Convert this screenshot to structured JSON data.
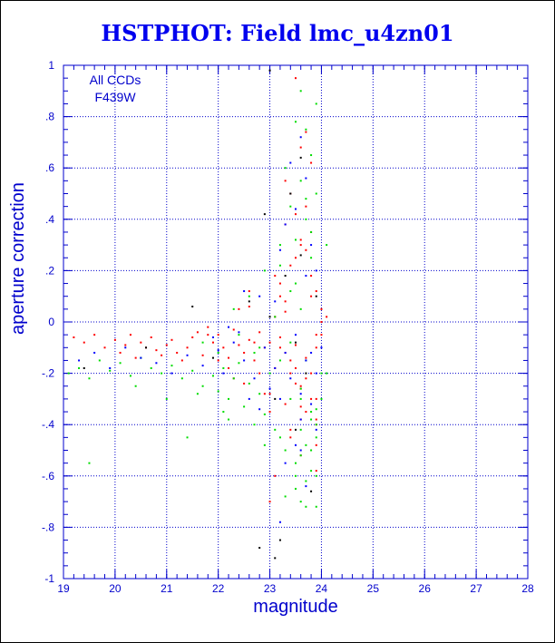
{
  "title": "HSTPHOT: Field lmc_u4zn01",
  "chart_data": {
    "type": "scatter",
    "title": "HSTPHOT: Field lmc_u4zn01",
    "xlabel": "magnitude",
    "ylabel": "aperture correction",
    "annotations": [
      "All CCDs",
      "F439W"
    ],
    "xlim": [
      19,
      28
    ],
    "ylim": [
      -1,
      1
    ],
    "xticks": [
      19,
      20,
      21,
      22,
      23,
      24,
      25,
      26,
      27,
      28
    ],
    "yticks": [
      -1,
      -0.8,
      -0.6,
      -0.4,
      -0.2,
      0,
      0.2,
      0.4,
      0.6,
      0.8,
      1
    ],
    "grid": true,
    "colors": {
      "axis": "#0000cc",
      "title": "#0000ee",
      "grid_dash": "#0000cc"
    },
    "series": [
      {
        "color": "#ff0000",
        "x": [
          19.2,
          19.4,
          19.6,
          19.8,
          20.0,
          20.1,
          20.2,
          20.3,
          20.4,
          20.5,
          20.6,
          20.7,
          20.8,
          20.9,
          21.0,
          21.1,
          21.2,
          21.3,
          21.4,
          21.5,
          21.6,
          21.7,
          21.8,
          21.9,
          22.0,
          22.1,
          22.2,
          22.3,
          22.4,
          22.5,
          22.6,
          22.7,
          22.8,
          22.9,
          23.0,
          23.1,
          23.2,
          23.3,
          23.4,
          23.5,
          23.6,
          23.7,
          23.8,
          23.9,
          24.0,
          22.4,
          22.6,
          22.8,
          23.0,
          23.1,
          23.2,
          23.3,
          23.4,
          23.5,
          23.6,
          23.7,
          23.8,
          23.9,
          24.0,
          24.1,
          23.3,
          23.5,
          23.6,
          23.7,
          23.8,
          23.9,
          23.4,
          23.5,
          23.6,
          23.8,
          23.9,
          23.2,
          23.3,
          23.5,
          23.7,
          23.9,
          22.2,
          22.5,
          22.7,
          23.0,
          23.2,
          23.4,
          23.6,
          23.8,
          24.0,
          21.8,
          22.0,
          22.3,
          22.6,
          22.9,
          23.1,
          23.4,
          23.6,
          23.8,
          23.5,
          23.7,
          23.9,
          23.3,
          23.6,
          23.9,
          23.1,
          23.4,
          23.7,
          23.0,
          23.3,
          23.6,
          23.9
        ],
        "y": [
          -0.06,
          -0.08,
          -0.05,
          -0.1,
          -0.07,
          -0.12,
          -0.09,
          -0.05,
          -0.14,
          -0.08,
          -0.1,
          -0.06,
          -0.11,
          -0.13,
          -0.09,
          -0.07,
          -0.12,
          -0.15,
          -0.1,
          -0.06,
          -0.04,
          -0.13,
          -0.02,
          -0.08,
          -0.05,
          -0.1,
          -0.14,
          -0.03,
          -0.09,
          -0.12,
          -0.07,
          -0.15,
          -0.04,
          -0.1,
          -0.08,
          -0.18,
          -0.06,
          -0.12,
          -0.2,
          -0.09,
          -0.25,
          -0.14,
          -0.3,
          -0.1,
          -0.05,
          0.05,
          0.12,
          -0.2,
          -0.28,
          0.02,
          0.15,
          -0.32,
          0.22,
          -0.18,
          0.3,
          -0.35,
          0.1,
          -0.4,
          0.05,
          0.02,
          0.55,
          0.42,
          0.68,
          -0.22,
          0.35,
          -0.38,
          -0.45,
          0.25,
          -0.52,
          0.18,
          -0.3,
          -0.1,
          0.08,
          -0.24,
          0.45,
          -0.05,
          -0.18,
          -0.24,
          -0.08,
          -0.35,
          0.1,
          -0.42,
          0.32,
          -0.2,
          0.0,
          -0.05,
          -0.15,
          -0.22,
          0.06,
          -0.28,
          0.18,
          0.5,
          -0.33,
          0.62,
          0.95,
          0.74,
          -0.48,
          0.38,
          -0.26,
          0.12,
          -0.6,
          -0.15,
          0.28,
          -0.7,
          0.04,
          -0.38,
          -0.58
        ]
      },
      {
        "color": "#00dd00",
        "x": [
          19.1,
          19.3,
          19.5,
          19.7,
          19.9,
          20.1,
          20.3,
          20.5,
          20.7,
          20.9,
          21.1,
          21.3,
          21.5,
          21.7,
          21.9,
          22.0,
          22.1,
          22.2,
          22.3,
          22.4,
          22.5,
          22.6,
          22.7,
          22.8,
          22.9,
          23.0,
          23.1,
          23.2,
          23.3,
          23.4,
          23.5,
          23.6,
          23.7,
          23.8,
          23.9,
          24.0,
          22.3,
          22.6,
          22.9,
          23.2,
          23.5,
          23.8,
          23.4,
          23.6,
          23.7,
          23.8,
          23.9,
          23.5,
          23.6,
          23.7,
          23.8,
          23.3,
          23.5,
          23.7,
          23.9,
          24.1,
          21.7,
          22.0,
          22.4,
          22.8,
          23.1,
          23.4,
          23.7,
          24.0,
          23.6,
          23.8,
          23.9,
          23.5,
          23.7,
          19.5,
          21.4,
          22.2,
          22.9,
          23.3,
          23.6,
          23.9,
          23.2,
          23.6,
          23.9,
          24.1,
          20.4,
          21.0,
          21.6,
          22.1,
          22.7,
          23.2,
          23.8,
          23.5,
          23.7,
          23.6,
          23.8,
          23.9,
          23.4,
          23.6
        ],
        "y": [
          -0.2,
          -0.18,
          -0.22,
          -0.15,
          -0.19,
          -0.16,
          -0.21,
          -0.14,
          -0.18,
          -0.2,
          -0.17,
          -0.22,
          -0.19,
          -0.25,
          -0.21,
          -0.27,
          -0.18,
          -0.3,
          -0.22,
          -0.16,
          -0.33,
          -0.24,
          -0.12,
          -0.28,
          -0.36,
          -0.2,
          -0.42,
          -0.15,
          -0.5,
          -0.3,
          -0.55,
          -0.26,
          -0.62,
          -0.35,
          -0.45,
          -0.3,
          0.05,
          0.1,
          0.2,
          0.3,
          0.15,
          0.25,
          0.45,
          0.55,
          0.75,
          0.65,
          0.85,
          -0.6,
          -0.7,
          -0.48,
          -0.58,
          0.6,
          0.78,
          0.4,
          0.5,
          0.3,
          -0.08,
          -0.12,
          -0.05,
          -0.1,
          0.02,
          -0.08,
          -0.15,
          -0.2,
          0.9,
          0.35,
          -0.4,
          -0.65,
          -0.72,
          -0.55,
          -0.45,
          -0.38,
          -0.48,
          -0.68,
          -0.52,
          -0.6,
          0.22,
          -0.3,
          -0.72,
          -0.2,
          -0.25,
          -0.3,
          -0.28,
          -0.35,
          -0.4,
          -0.45,
          -0.38,
          0.32,
          0.48,
          -0.42,
          -0.5,
          -0.34,
          0.12,
          0.05
        ]
      },
      {
        "color": "#0000ff",
        "x": [
          19.3,
          19.6,
          19.9,
          20.2,
          20.5,
          20.8,
          21.1,
          21.4,
          21.7,
          22.0,
          22.1,
          22.3,
          22.5,
          22.7,
          22.9,
          23.0,
          23.1,
          23.2,
          23.3,
          23.4,
          23.5,
          23.6,
          23.7,
          23.8,
          23.9,
          24.0,
          22.4,
          22.8,
          23.2,
          23.6,
          23.4,
          23.7,
          23.9,
          23.5,
          23.8,
          23.3,
          23.6,
          23.7,
          22.6,
          23.1,
          23.5,
          23.9,
          21.9,
          22.2,
          22.5,
          22.8,
          23.3,
          23.6,
          23.8,
          23.2,
          23.7
        ],
        "y": [
          -0.15,
          -0.12,
          -0.18,
          -0.1,
          -0.14,
          -0.16,
          -0.2,
          -0.13,
          -0.17,
          -0.11,
          -0.2,
          -0.08,
          -0.15,
          -0.22,
          -0.1,
          -0.26,
          -0.18,
          -0.3,
          -0.12,
          -0.22,
          -0.05,
          -0.28,
          -0.15,
          -0.32,
          -0.2,
          -0.1,
          -0.04,
          0.1,
          0.28,
          -0.38,
          0.62,
          0.18,
          -0.42,
          0.44,
          -0.12,
          -0.55,
          0.72,
          -0.64,
          -0.3,
          0.08,
          -0.48,
          0.2,
          -0.06,
          -0.02,
          0.12,
          -0.34,
          0.38,
          -0.5,
          0.3,
          -0.78,
          0.56
        ]
      },
      {
        "color": "#000000",
        "x": [
          19.4,
          20.6,
          21.5,
          21.9,
          22.6,
          22.9,
          23.0,
          23.1,
          23.3,
          23.5,
          23.6,
          23.8,
          23.9,
          23.2,
          23.4,
          23.7,
          22.8,
          23.1,
          23.5,
          23.0,
          23.6
        ],
        "y": [
          -0.18,
          -0.1,
          0.06,
          -0.14,
          0.08,
          0.42,
          0.98,
          -0.3,
          0.18,
          -0.42,
          0.26,
          -0.66,
          0.1,
          -0.85,
          0.5,
          -0.2,
          -0.88,
          -0.92,
          -0.08,
          0.02,
          0.64
        ]
      }
    ]
  }
}
